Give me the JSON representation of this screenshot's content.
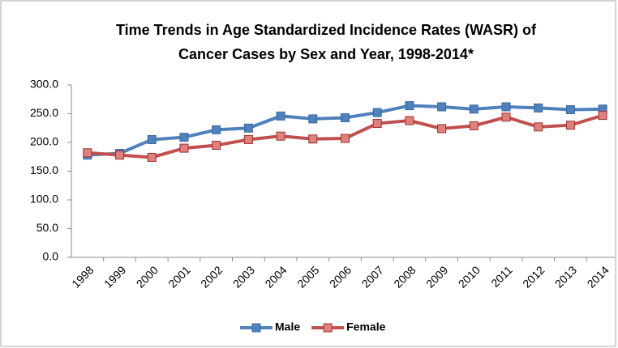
{
  "chart_data": {
    "type": "line",
    "title": [
      "Time Trends in Age Standardized Incidence Rates (WASR) of",
      "Cancer Cases by Sex and Year, 1998-2014*"
    ],
    "categories": [
      "1998",
      "1999",
      "2000",
      "2001",
      "2002",
      "2003",
      "2004",
      "2005",
      "2006",
      "2007",
      "2008",
      "2009",
      "2010",
      "2011",
      "2012",
      "2013",
      "2014"
    ],
    "series": [
      {
        "name": "Male",
        "color": "#4f81bd",
        "values": [
          178,
          181,
          205,
          209,
          222,
          225,
          246,
          241,
          243,
          252,
          264,
          262,
          258,
          262,
          260,
          257,
          258
        ]
      },
      {
        "name": "Female",
        "color": "#c0504d",
        "values": [
          182,
          178,
          174,
          190,
          195,
          205,
          211,
          206,
          207,
          233,
          238,
          224,
          229,
          244,
          227,
          230,
          247
        ]
      }
    ],
    "ylim": [
      0,
      300
    ],
    "yticks": [
      {
        "value": 0,
        "label": "0.0"
      },
      {
        "value": 50,
        "label": "50.0"
      },
      {
        "value": 100,
        "label": "100.0"
      },
      {
        "value": 150,
        "label": "150.0"
      },
      {
        "value": 200,
        "label": "200.0"
      },
      {
        "value": 250,
        "label": "250.0"
      },
      {
        "value": 300,
        "label": "300.0"
      }
    ],
    "grid": false,
    "legend": "bottom"
  }
}
